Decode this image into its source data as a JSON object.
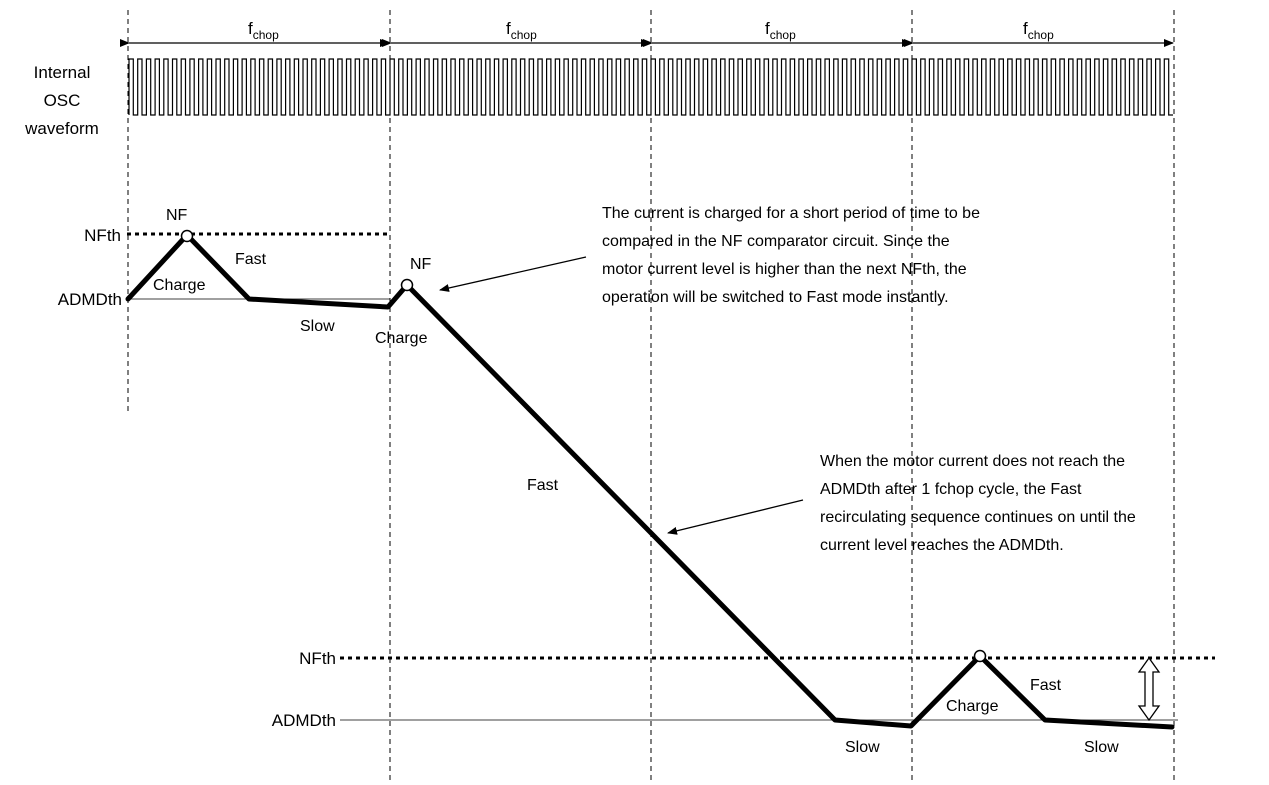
{
  "chop_label": "f",
  "chop_sub": "chop",
  "osc_label": [
    "Internal",
    "OSC",
    "waveform"
  ],
  "levels": {
    "nfth": "NFth",
    "admdth": "ADMDth"
  },
  "segments": {
    "nf": "NF",
    "charge": "Charge",
    "fast": "Fast",
    "slow": "Slow"
  },
  "notes": {
    "top": [
      "The current is charged for a short period of time to be",
      "compared in the NF comparator circuit. Since the",
      "motor current level is higher than the next NFth, the",
      "operation will be switched to Fast mode instantly."
    ],
    "middle": [
      "When the motor current does not reach the",
      "ADMDth after 1 fchop cycle, the Fast",
      "recirculating sequence continues on until the",
      "current level reaches the ADMDth."
    ]
  }
}
